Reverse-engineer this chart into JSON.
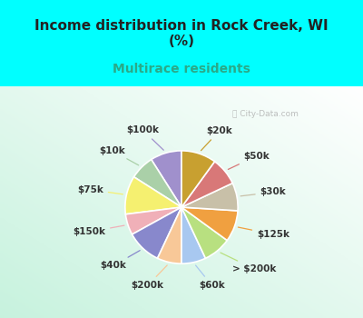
{
  "title": "Income distribution in Rock Creek, WI\n(%)",
  "subtitle": "Multirace residents",
  "watermark": "ⓘ City-Data.com",
  "labels": [
    "$100k",
    "$10k",
    "$75k",
    "$150k",
    "$40k",
    "$200k",
    "$60k",
    "> $200k",
    "$125k",
    "$30k",
    "$50k",
    "$20k"
  ],
  "values": [
    9,
    7,
    11,
    6,
    10,
    7,
    7,
    8,
    9,
    8,
    8,
    10
  ],
  "colors": [
    "#a090cc",
    "#aad0a8",
    "#f5f070",
    "#f0b0b8",
    "#8888cc",
    "#f8c898",
    "#a8c8f0",
    "#b8e080",
    "#f0a040",
    "#c8c0a8",
    "#d87878",
    "#c8a030"
  ],
  "bg_color": "#00ffff",
  "title_fontsize": 11,
  "title_color": "#222222",
  "subtitle_color": "#2aaa88",
  "subtitle_fontsize": 10,
  "startangle": 90,
  "label_fontsize": 7.5
}
